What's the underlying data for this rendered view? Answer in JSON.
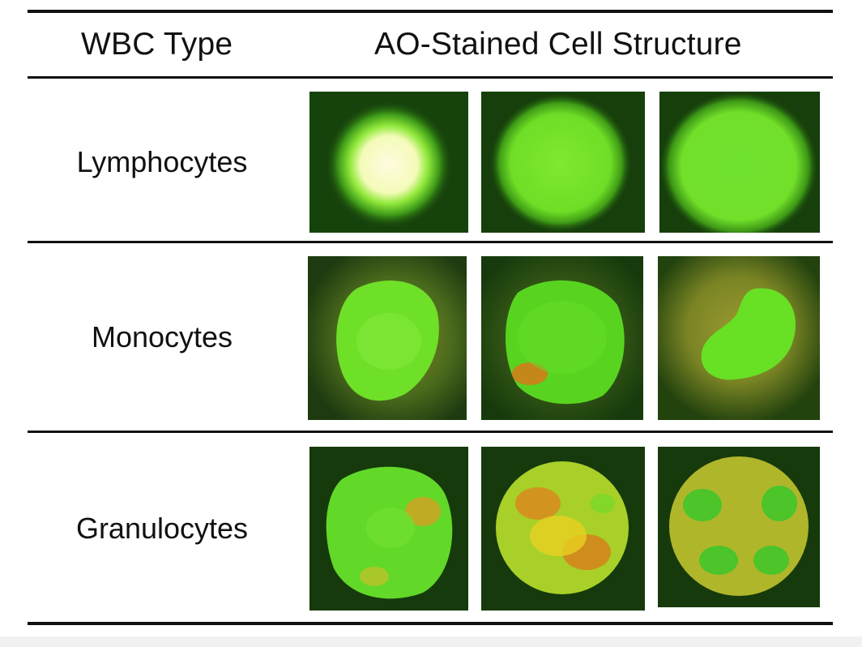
{
  "header": {
    "col1": "WBC Type",
    "col2": "AO-Stained Cell Structure"
  },
  "rows": [
    {
      "label": "Lymphocytes",
      "images": [
        "lymphocyte-1",
        "lymphocyte-2",
        "lymphocyte-3"
      ]
    },
    {
      "label": "Monocytes",
      "images": [
        "monocyte-1",
        "monocyte-2",
        "monocyte-3"
      ]
    },
    {
      "label": "Granulocytes",
      "images": [
        "granulocyte-1",
        "granulocyte-2",
        "granulocyte-3"
      ]
    }
  ],
  "colors": {
    "background": "#143d0c",
    "cell_green": "#7ae830",
    "nucleus_green": "#5ee21c",
    "bright_center": "#fffbd8",
    "cytoplasm_orange": "#e06a1a",
    "yellow": "#e8d020"
  }
}
